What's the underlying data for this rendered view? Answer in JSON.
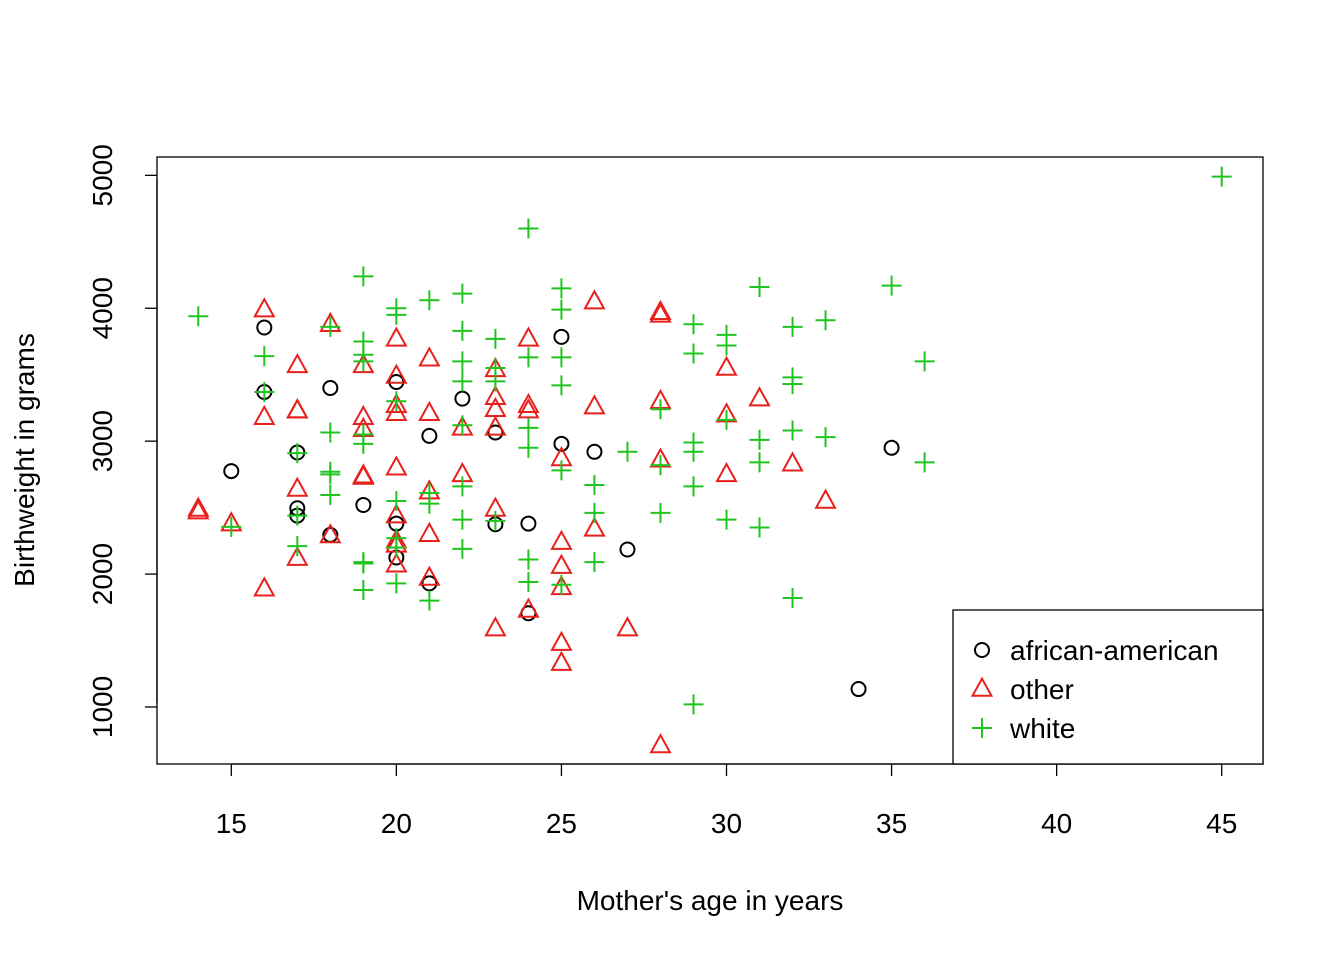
{
  "chart_data": {
    "type": "scatter",
    "title": "",
    "xlabel": "Mother's age in years",
    "ylabel": "Birthweight in grams",
    "xlim": [
      12.75,
      46.25
    ],
    "ylim": [
      571,
      5138
    ],
    "xticks": [
      15,
      20,
      25,
      30,
      35,
      40,
      45
    ],
    "yticks": [
      1000,
      2000,
      3000,
      4000,
      5000
    ],
    "grid": false,
    "legend_position": "bottom-right",
    "series": [
      {
        "name": "african-american",
        "marker": "circle",
        "color": "#000000",
        "points": [
          [
            15,
            2775
          ],
          [
            16,
            3855
          ],
          [
            16,
            3370
          ],
          [
            17,
            2915
          ],
          [
            17,
            2495
          ],
          [
            17,
            2440
          ],
          [
            18,
            3400
          ],
          [
            18,
            2295
          ],
          [
            19,
            2520
          ],
          [
            20,
            3445
          ],
          [
            20,
            2380
          ],
          [
            20,
            2125
          ],
          [
            21,
            3040
          ],
          [
            21,
            1930
          ],
          [
            22,
            3320
          ],
          [
            23,
            3065
          ],
          [
            23,
            2375
          ],
          [
            24,
            2380
          ],
          [
            24,
            1705
          ],
          [
            25,
            3785
          ],
          [
            25,
            2980
          ],
          [
            26,
            2920
          ],
          [
            27,
            2185
          ],
          [
            34,
            1135
          ],
          [
            35,
            2950
          ]
        ]
      },
      {
        "name": "other",
        "marker": "triangle",
        "color": "#e8201c",
        "points": [
          [
            14,
            2490
          ],
          [
            14,
            2470
          ],
          [
            15,
            2380
          ],
          [
            16,
            3990
          ],
          [
            16,
            3180
          ],
          [
            16,
            1890
          ],
          [
            17,
            3570
          ],
          [
            17,
            3230
          ],
          [
            17,
            3230
          ],
          [
            17,
            2640
          ],
          [
            17,
            2120
          ],
          [
            18,
            3880
          ],
          [
            18,
            2290
          ],
          [
            19,
            3570
          ],
          [
            19,
            3180
          ],
          [
            19,
            3090
          ],
          [
            19,
            2740
          ],
          [
            19,
            2730
          ],
          [
            20,
            3770
          ],
          [
            20,
            3490
          ],
          [
            20,
            3270
          ],
          [
            20,
            3210
          ],
          [
            20,
            2800
          ],
          [
            20,
            2440
          ],
          [
            20,
            2250
          ],
          [
            20,
            2220
          ],
          [
            20,
            2070
          ],
          [
            21,
            3620
          ],
          [
            21,
            3210
          ],
          [
            21,
            2620
          ],
          [
            21,
            2300
          ],
          [
            21,
            1970
          ],
          [
            22,
            3100
          ],
          [
            22,
            2750
          ],
          [
            23,
            3540
          ],
          [
            23,
            3330
          ],
          [
            23,
            3240
          ],
          [
            23,
            3100
          ],
          [
            23,
            2490
          ],
          [
            23,
            1590
          ],
          [
            24,
            3770
          ],
          [
            24,
            3270
          ],
          [
            24,
            3230
          ],
          [
            24,
            1730
          ],
          [
            25,
            2870
          ],
          [
            25,
            2240
          ],
          [
            25,
            2060
          ],
          [
            25,
            1900
          ],
          [
            25,
            1480
          ],
          [
            25,
            1330
          ],
          [
            26,
            4050
          ],
          [
            26,
            3260
          ],
          [
            26,
            2340
          ],
          [
            27,
            1590
          ],
          [
            28,
            3970
          ],
          [
            28,
            3950
          ],
          [
            28,
            3300
          ],
          [
            28,
            2860
          ],
          [
            28,
            710
          ],
          [
            30,
            3550
          ],
          [
            30,
            3200
          ],
          [
            30,
            2750
          ],
          [
            31,
            3320
          ],
          [
            32,
            2830
          ],
          [
            33,
            2550
          ]
        ]
      },
      {
        "name": "white",
        "marker": "plus",
        "color": "#1fc41f",
        "points": [
          [
            14,
            3940
          ],
          [
            15,
            2355
          ],
          [
            16,
            3640
          ],
          [
            16,
            3370
          ],
          [
            17,
            2910
          ],
          [
            17,
            2440
          ],
          [
            17,
            2210
          ],
          [
            18,
            3860
          ],
          [
            18,
            3065
          ],
          [
            18,
            2770
          ],
          [
            18,
            2750
          ],
          [
            18,
            2595
          ],
          [
            19,
            4240
          ],
          [
            19,
            3750
          ],
          [
            19,
            3650
          ],
          [
            19,
            3600
          ],
          [
            19,
            3050
          ],
          [
            19,
            2980
          ],
          [
            19,
            2090
          ],
          [
            19,
            2080
          ],
          [
            19,
            1880
          ],
          [
            20,
            4000
          ],
          [
            20,
            3950
          ],
          [
            20,
            3300
          ],
          [
            20,
            2550
          ],
          [
            20,
            2270
          ],
          [
            20,
            2200
          ],
          [
            20,
            1930
          ],
          [
            21,
            4060
          ],
          [
            21,
            2610
          ],
          [
            21,
            2530
          ],
          [
            21,
            1800
          ],
          [
            22,
            4110
          ],
          [
            22,
            3830
          ],
          [
            22,
            3600
          ],
          [
            22,
            3450
          ],
          [
            22,
            3120
          ],
          [
            22,
            2660
          ],
          [
            22,
            2410
          ],
          [
            22,
            2190
          ],
          [
            23,
            3770
          ],
          [
            23,
            3550
          ],
          [
            23,
            3450
          ],
          [
            23,
            2400
          ],
          [
            24,
            4600
          ],
          [
            24,
            3630
          ],
          [
            24,
            3100
          ],
          [
            24,
            2950
          ],
          [
            24,
            2110
          ],
          [
            24,
            1940
          ],
          [
            25,
            4150
          ],
          [
            25,
            3990
          ],
          [
            25,
            3630
          ],
          [
            25,
            3420
          ],
          [
            25,
            2780
          ],
          [
            25,
            1920
          ],
          [
            26,
            2670
          ],
          [
            26,
            2460
          ],
          [
            26,
            2090
          ],
          [
            27,
            2920
          ],
          [
            28,
            3240
          ],
          [
            28,
            2820
          ],
          [
            28,
            2460
          ],
          [
            29,
            3880
          ],
          [
            29,
            3660
          ],
          [
            29,
            2990
          ],
          [
            29,
            2920
          ],
          [
            29,
            2660
          ],
          [
            29,
            1020
          ],
          [
            30,
            3800
          ],
          [
            30,
            3720
          ],
          [
            30,
            3160
          ],
          [
            30,
            2410
          ],
          [
            31,
            4160
          ],
          [
            31,
            3010
          ],
          [
            31,
            2840
          ],
          [
            31,
            2350
          ],
          [
            32,
            3860
          ],
          [
            32,
            3480
          ],
          [
            32,
            3430
          ],
          [
            32,
            3080
          ],
          [
            32,
            1820
          ],
          [
            33,
            3910
          ],
          [
            33,
            3030
          ],
          [
            35,
            4170
          ],
          [
            36,
            3600
          ],
          [
            36,
            2840
          ],
          [
            45,
            4990
          ]
        ]
      }
    ]
  }
}
